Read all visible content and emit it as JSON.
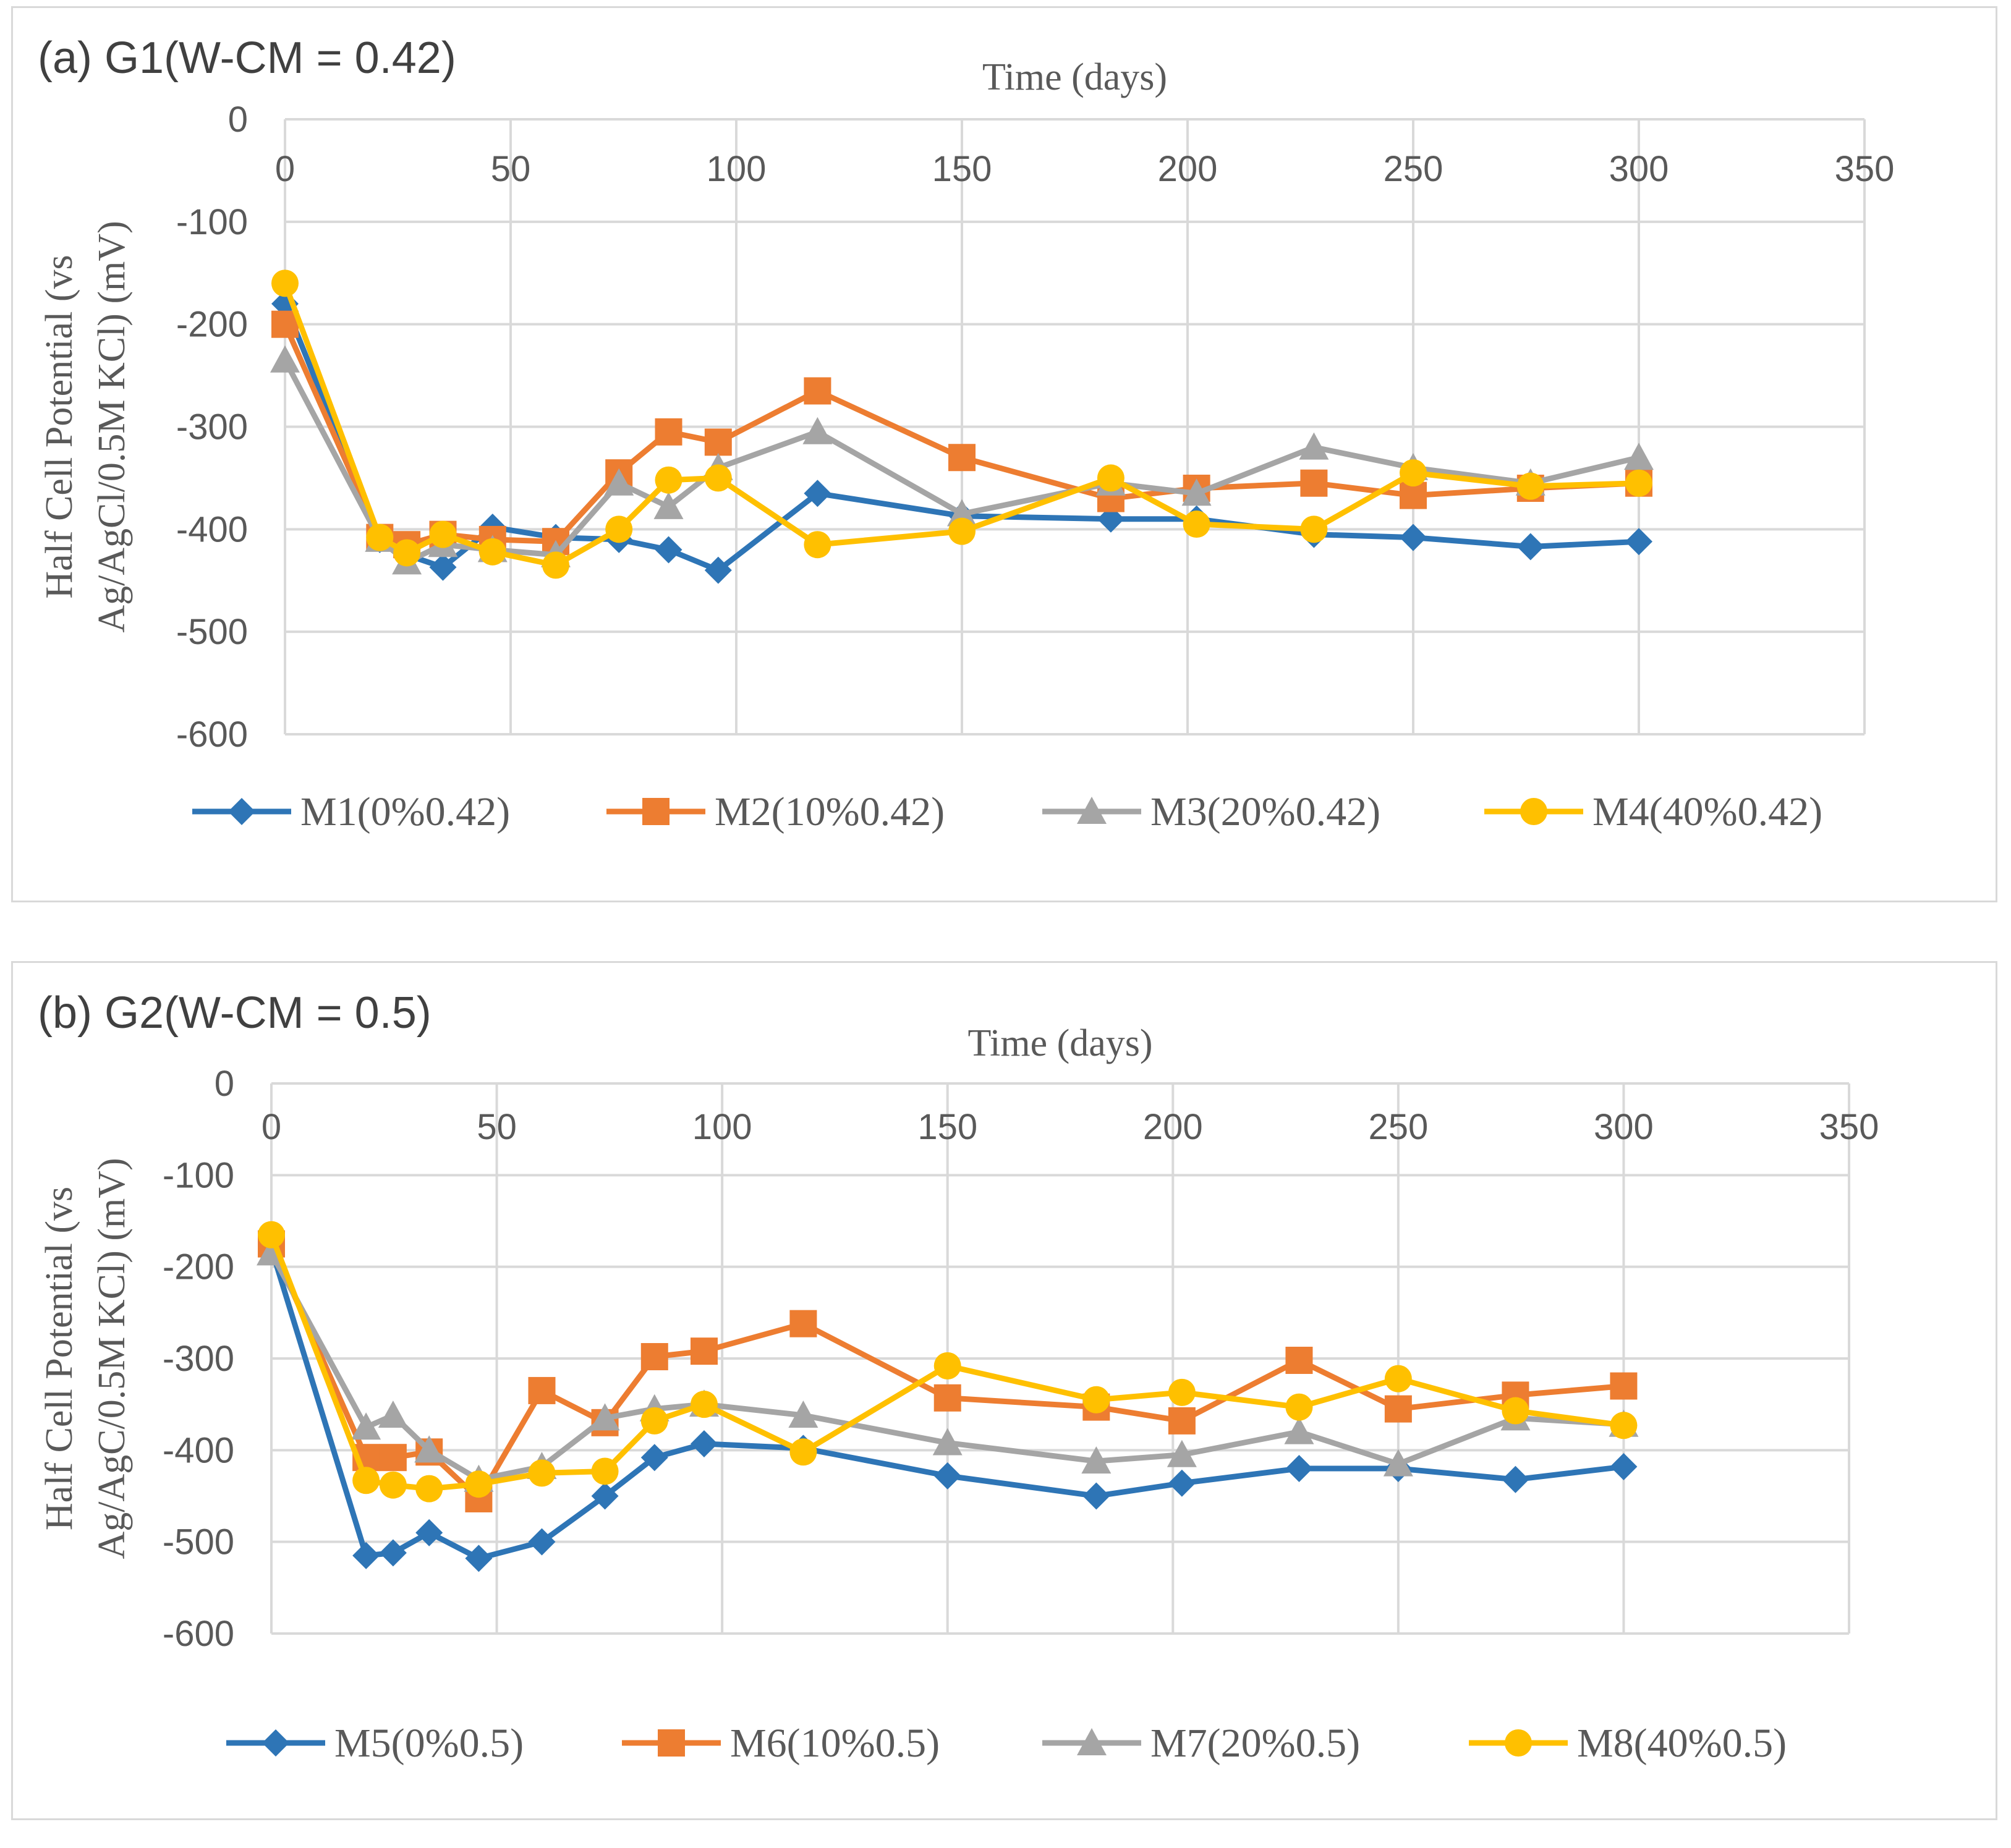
{
  "chart_data": [
    {
      "type": "line",
      "title": "(a) G1(W-CM = 0.42)",
      "xlabel": "Time (days)",
      "ylabel_line1": "Half Cell Potential (vs",
      "ylabel_line2": "Ag/AgCl/0.5M KCl) (mV)",
      "xlim": [
        0,
        350
      ],
      "ylim": [
        -600,
        0
      ],
      "xticks": [
        "0",
        "50",
        "100",
        "150",
        "200",
        "250",
        "300",
        "350"
      ],
      "yticks": [
        "0",
        "-100",
        "-200",
        "-300",
        "-400",
        "-500",
        "-600"
      ],
      "grid": true,
      "legend_position": "bottom",
      "series": [
        {
          "name": "M1(0%0.42)",
          "color": "#2e75b6",
          "marker": "diamond",
          "x": [
            0,
            21,
            27,
            35,
            46,
            60,
            74,
            85,
            96,
            118,
            150,
            183,
            202,
            228,
            250,
            276,
            300
          ],
          "y": [
            -180,
            -410,
            -425,
            -437,
            -398,
            -408,
            -410,
            -420,
            -440,
            -365,
            -387,
            -390,
            -390,
            -405,
            -408,
            -417,
            -412
          ]
        },
        {
          "name": "M2(10%0.42)",
          "color": "#ed7d31",
          "marker": "square",
          "x": [
            0,
            21,
            27,
            35,
            46,
            60,
            74,
            85,
            96,
            118,
            150,
            183,
            202,
            228,
            250,
            276,
            300
          ],
          "y": [
            -200,
            -408,
            -415,
            -405,
            -410,
            -412,
            -345,
            -305,
            -315,
            -265,
            -330,
            -370,
            -360,
            -355,
            -367,
            -360,
            -355
          ]
        },
        {
          "name": "M3(20%0.42)",
          "color": "#a5a5a5",
          "marker": "triangle",
          "x": [
            0,
            21,
            27,
            35,
            46,
            60,
            74,
            85,
            96,
            118,
            150,
            183,
            202,
            228,
            250,
            276,
            300
          ],
          "y": [
            -235,
            -410,
            -432,
            -415,
            -420,
            -425,
            -355,
            -378,
            -340,
            -305,
            -385,
            -355,
            -365,
            -320,
            -340,
            -355,
            -330
          ]
        },
        {
          "name": "M4(40%0.42)",
          "color": "#ffc000",
          "marker": "circle",
          "x": [
            0,
            21,
            27,
            35,
            46,
            60,
            74,
            85,
            96,
            118,
            150,
            183,
            202,
            228,
            250,
            276,
            300
          ],
          "y": [
            -160,
            -408,
            -423,
            -405,
            -422,
            -435,
            -400,
            -352,
            -350,
            -415,
            -402,
            -350,
            -395,
            -400,
            -345,
            -358,
            -355
          ]
        }
      ]
    },
    {
      "type": "line",
      "title": "(b) G2(W-CM = 0.5)",
      "xlabel": "Time (days)",
      "ylabel_line1": "Half Cell Potential (vs",
      "ylabel_line2": "Ag/AgC/0.5M KCl) (mV)",
      "xlim": [
        0,
        350
      ],
      "ylim": [
        -600,
        0
      ],
      "xticks": [
        "0",
        "50",
        "100",
        "150",
        "200",
        "250",
        "300",
        "350"
      ],
      "yticks": [
        "0",
        "-100",
        "-200",
        "-300",
        "-400",
        "-500",
        "-600"
      ],
      "grid": true,
      "legend_position": "bottom",
      "series": [
        {
          "name": "M5(0%0.5)",
          "color": "#2e75b6",
          "marker": "diamond",
          "x": [
            0,
            21,
            27,
            35,
            46,
            60,
            74,
            85,
            96,
            118,
            150,
            183,
            202,
            228,
            250,
            276,
            300
          ],
          "y": [
            -180,
            -515,
            -512,
            -490,
            -518,
            -500,
            -450,
            -408,
            -393,
            -398,
            -428,
            -450,
            -436,
            -420,
            -420,
            -432,
            -418
          ]
        },
        {
          "name": "M6(10%0.5)",
          "color": "#ed7d31",
          "marker": "square",
          "x": [
            0,
            21,
            27,
            35,
            46,
            60,
            74,
            85,
            96,
            118,
            150,
            183,
            202,
            228,
            250,
            276,
            300
          ],
          "y": [
            -175,
            -408,
            -408,
            -402,
            -453,
            -335,
            -370,
            -298,
            -292,
            -262,
            -343,
            -353,
            -368,
            -302,
            -355,
            -340,
            -330
          ]
        },
        {
          "name": "M7(20%0.5)",
          "color": "#a5a5a5",
          "marker": "triangle",
          "x": [
            0,
            21,
            27,
            35,
            46,
            60,
            74,
            85,
            96,
            118,
            150,
            183,
            202,
            228,
            250,
            276,
            300
          ],
          "y": [
            -185,
            -375,
            -362,
            -400,
            -432,
            -418,
            -365,
            -355,
            -350,
            -362,
            -392,
            -412,
            -405,
            -380,
            -415,
            -365,
            -372
          ]
        },
        {
          "name": "M8(40%0.5)",
          "color": "#ffc000",
          "marker": "circle",
          "x": [
            0,
            21,
            27,
            35,
            46,
            60,
            74,
            85,
            96,
            118,
            150,
            183,
            202,
            228,
            250,
            276,
            300
          ],
          "y": [
            -165,
            -433,
            -438,
            -442,
            -437,
            -425,
            -423,
            -368,
            -350,
            -402,
            -308,
            -345,
            -337,
            -353,
            -322,
            -357,
            -373
          ]
        }
      ]
    }
  ]
}
